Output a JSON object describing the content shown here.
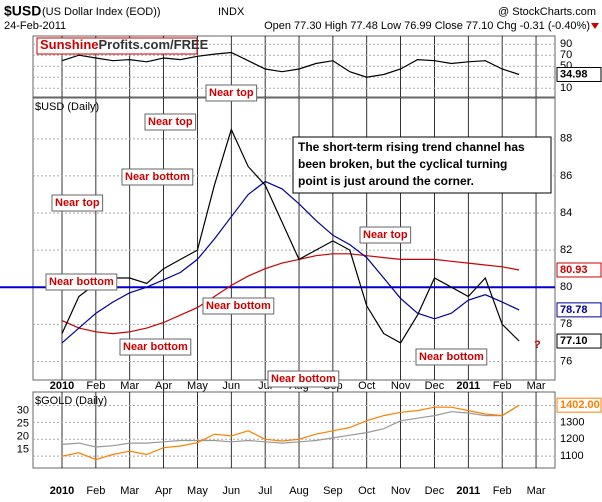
{
  "header": {
    "symbol": "$USD",
    "name": "(US Dollar Index (EOD))",
    "exchange": "INDX",
    "date": "24-Feb-2011",
    "quote": "Open 77.30  High 77.48  Low 76.99  Close 77.10  Chg -0.31 (-0.40%)",
    "source": "@ StockCharts.com",
    "brand_red": "Sunshine",
    "brand_rest": "Profits.com/FREE"
  },
  "chart_data": [
    {
      "type": "line",
      "ylim": [
        -6,
        105
      ],
      "yticks": [
        10,
        30,
        50,
        70,
        90
      ],
      "grid": true,
      "series": [
        {
          "color": "#000000",
          "last_label": "34.98",
          "values": [
            60,
            70,
            65,
            60,
            62,
            58,
            65,
            62,
            68,
            72,
            75,
            60,
            45,
            40,
            45,
            55,
            60,
            40,
            30,
            35,
            45,
            62,
            60,
            55,
            58,
            60,
            45,
            34.98,
            null
          ]
        }
      ]
    },
    {
      "type": "line",
      "title": "$USD (Daily)",
      "ylim": [
        75,
        90.2
      ],
      "yticks": [
        76,
        78,
        80,
        82,
        84,
        86,
        88
      ],
      "grid": true,
      "hlines": [
        80
      ],
      "categories": [
        "2010",
        null,
        "Feb",
        null,
        "Mar",
        null,
        "Apr",
        null,
        "May",
        null,
        "Jun",
        null,
        "Jul",
        null,
        "Aug",
        null,
        "Sep",
        null,
        "Oct",
        null,
        "Nov",
        null,
        "Dec",
        null,
        "2011",
        null,
        "Feb",
        null,
        "Mar"
      ],
      "series": [
        {
          "color": "#cc0000",
          "last_label": "80.93",
          "values": [
            78.2,
            77.8,
            77.6,
            77.5,
            77.6,
            77.8,
            78.1,
            78.5,
            78.9,
            79.5,
            80.1,
            80.6,
            81.0,
            81.3,
            81.5,
            81.7,
            81.8,
            81.8,
            81.7,
            81.6,
            81.5,
            81.5,
            81.5,
            81.4,
            81.3,
            81.2,
            81.1,
            80.93,
            null
          ]
        },
        {
          "color": "#000099",
          "last_label": "78.78",
          "values": [
            77.0,
            77.8,
            78.6,
            79.2,
            79.7,
            80.0,
            80.4,
            80.8,
            81.5,
            82.6,
            83.8,
            85.0,
            85.7,
            85.3,
            84.5,
            83.6,
            82.8,
            82.3,
            81.6,
            80.5,
            79.4,
            78.6,
            78.3,
            78.6,
            79.3,
            79.6,
            79.2,
            78.78,
            null
          ]
        },
        {
          "color": "#000000",
          "last_label": "77.10",
          "values": [
            77.5,
            79.5,
            80.2,
            80.5,
            80.5,
            80.2,
            81.0,
            81.5,
            82.0,
            85.5,
            88.5,
            86.5,
            85.5,
            83.5,
            81.5,
            82.0,
            82.5,
            82.0,
            79.0,
            77.5,
            77.0,
            78.5,
            80.5,
            80.0,
            79.5,
            80.5,
            78.0,
            77.1,
            null
          ]
        }
      ],
      "annotations": [
        "Near top",
        "Near top",
        "Near bottom",
        "Near top",
        "Near bottom",
        "Near bottom",
        "Near bottom",
        "Near top",
        "Near bottom",
        "Near bottom",
        "?"
      ],
      "comment": [
        "The short-term rising trend channel has",
        "been broken, but the cyclical turning",
        "point is just around the corner."
      ]
    },
    {
      "type": "line",
      "title": "$GOLD (Daily)",
      "ylim": [
        1030,
        1480
      ],
      "yticks": [
        1100,
        1200,
        1300,
        1400
      ],
      "y2lim": [
        8,
        37
      ],
      "y2ticks": [
        15,
        20,
        25,
        30
      ],
      "grid": true,
      "categories": [
        "2010",
        null,
        "Feb",
        null,
        "Mar",
        null,
        "Apr",
        null,
        "May",
        null,
        "Jun",
        null,
        "Jul",
        null,
        "Aug",
        null,
        "Sep",
        null,
        "Oct",
        null,
        "Nov",
        null,
        "Dec",
        null,
        "2011",
        null,
        "Feb",
        null,
        "Mar"
      ],
      "series": [
        {
          "color": "#999999",
          "axis": "y2",
          "values": [
            17,
            17.5,
            16,
            16.5,
            17.5,
            17.5,
            18,
            18.5,
            18.5,
            18.5,
            18,
            18.5,
            18,
            17.5,
            18,
            18.5,
            19.5,
            20.5,
            21.5,
            23,
            26,
            27,
            28,
            29.5,
            29,
            28,
            28,
            32,
            null
          ]
        },
        {
          "color": "#ff7f00",
          "last_label": "1402.00",
          "values": [
            1100,
            1120,
            1080,
            1110,
            1130,
            1110,
            1150,
            1160,
            1180,
            1230,
            1220,
            1250,
            1200,
            1190,
            1200,
            1230,
            1250,
            1270,
            1310,
            1340,
            1360,
            1370,
            1390,
            1390,
            1370,
            1350,
            1340,
            1402,
            null
          ]
        }
      ]
    }
  ]
}
